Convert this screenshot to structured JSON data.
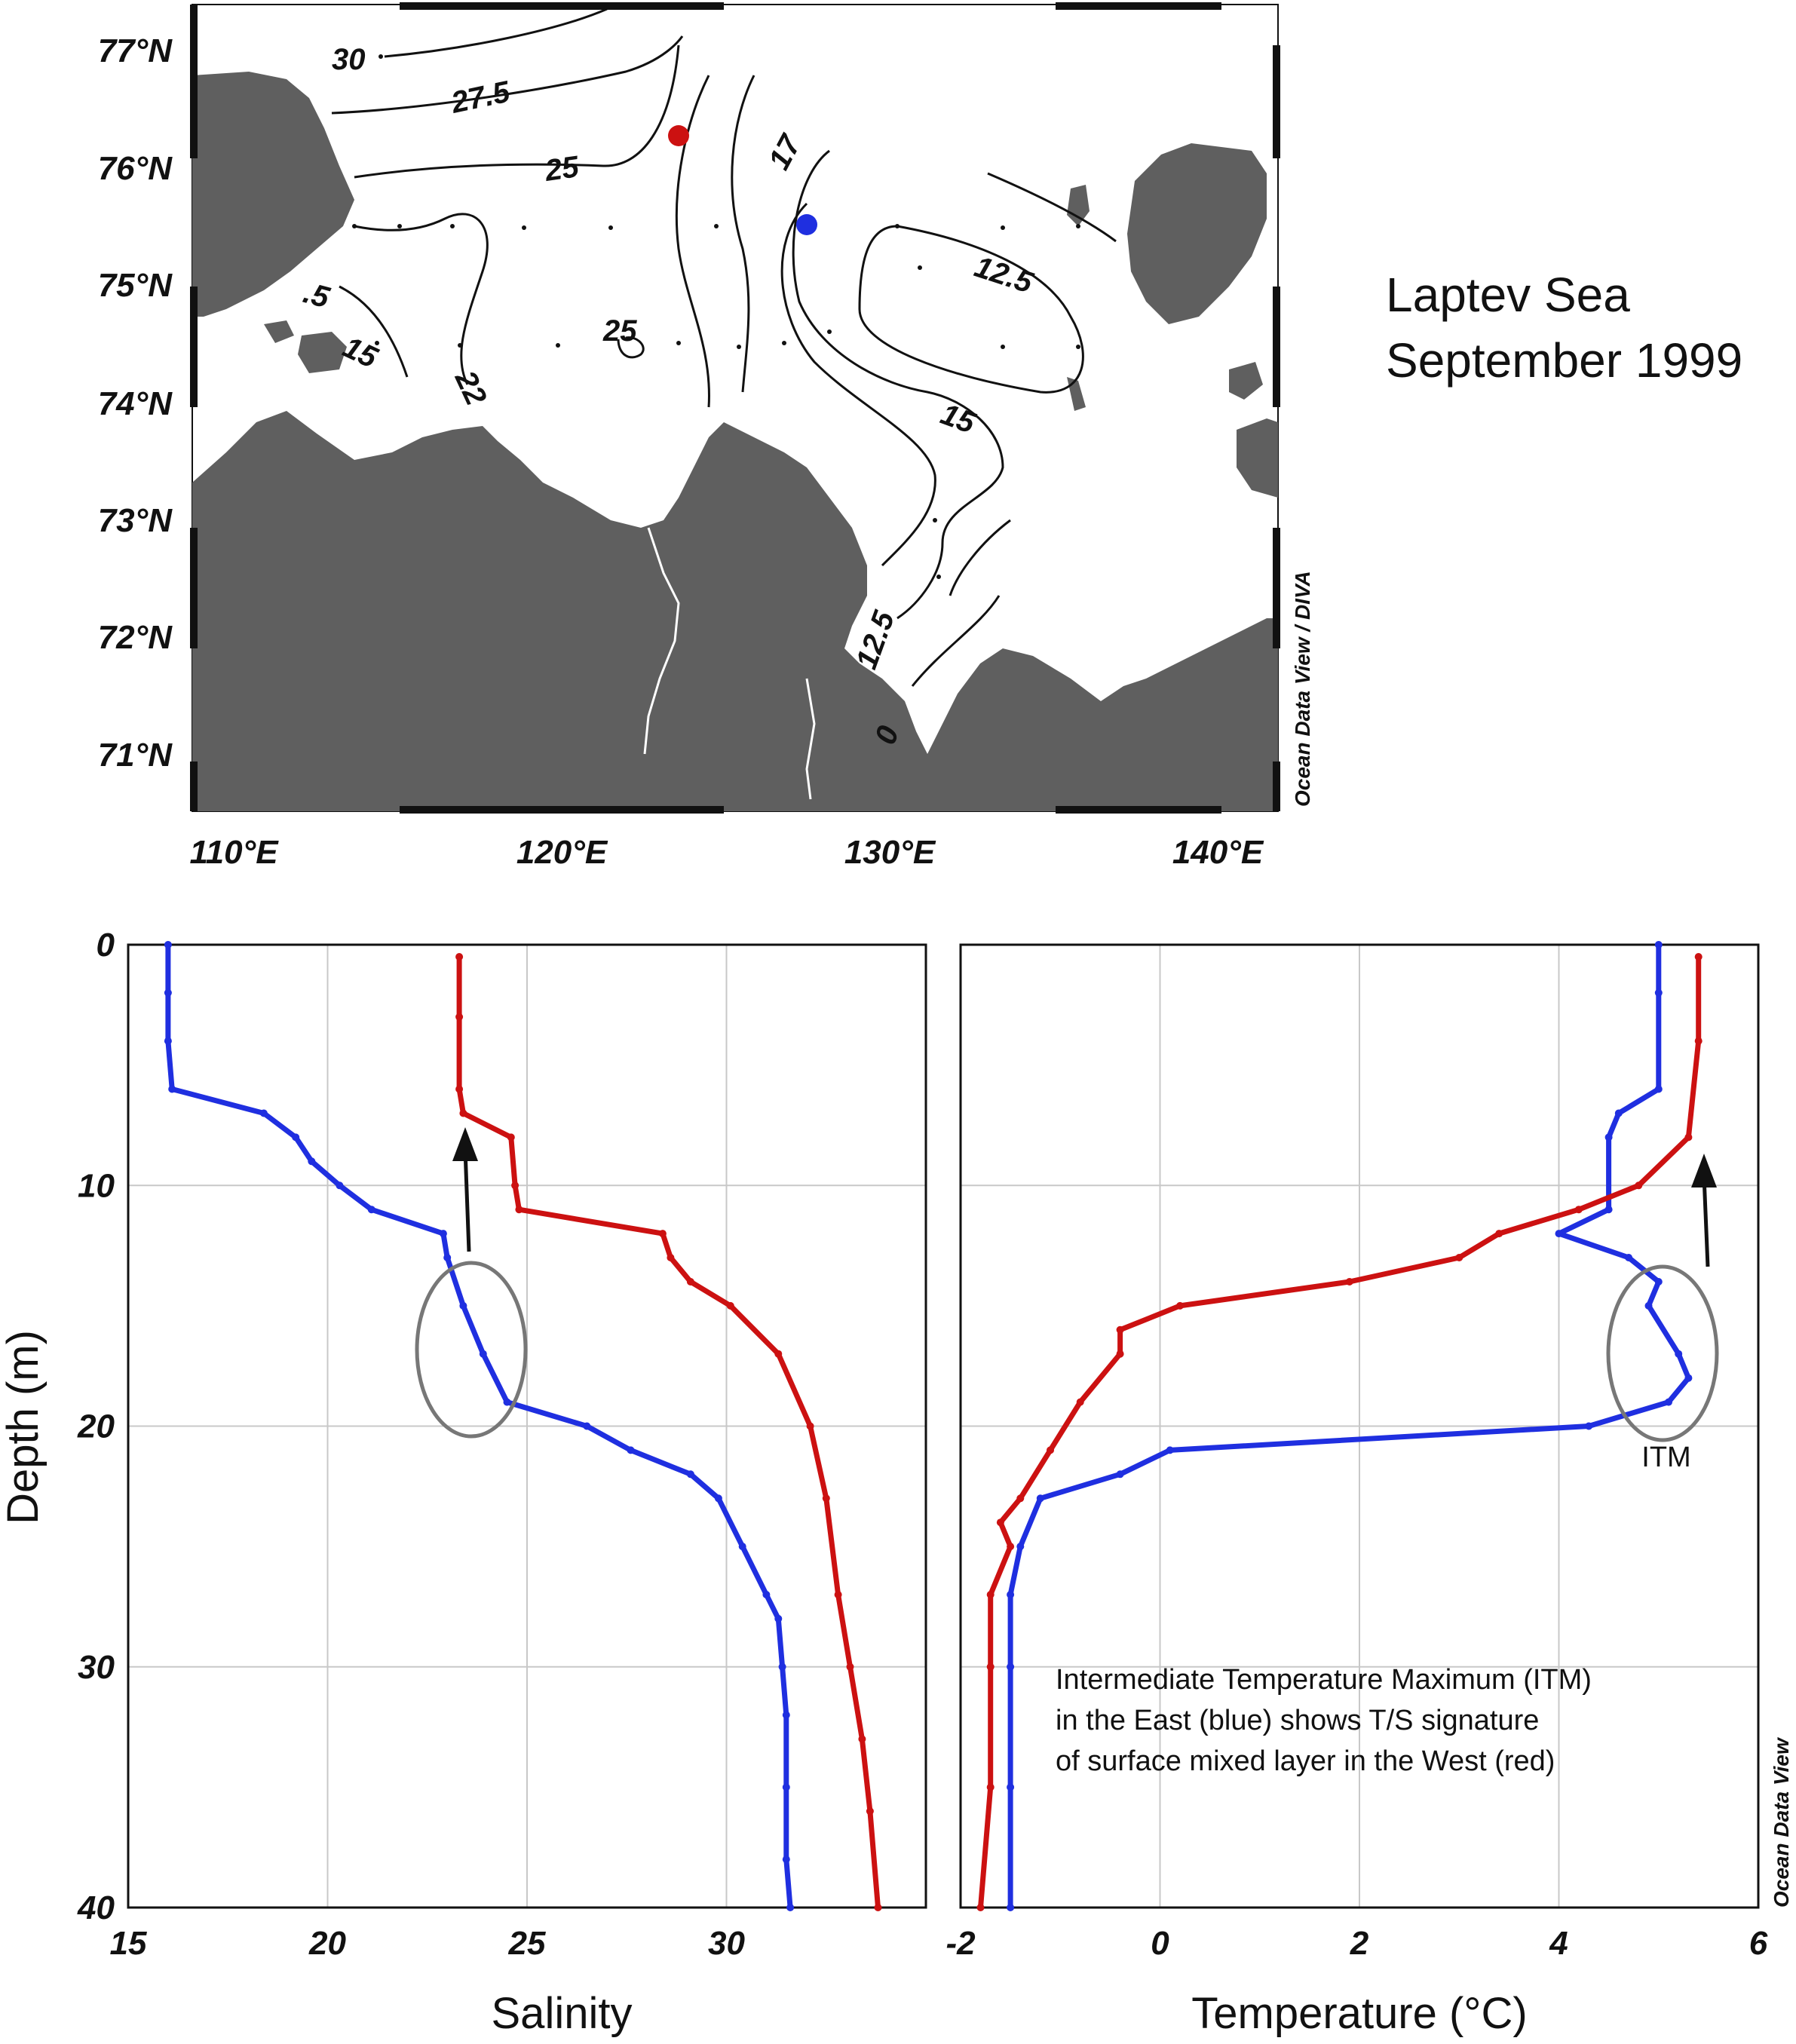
{
  "map": {
    "title_line1": "Laptev Sea",
    "title_line2": "September 1999",
    "lat_labels": [
      "77°N",
      "76°N",
      "75°N",
      "74°N",
      "73°N",
      "72°N",
      "71°N"
    ],
    "lon_labels": [
      "110°E",
      "120°E",
      "130°E",
      "140°E"
    ],
    "credit": "Ocean Data View / DIVA",
    "contour_labels": [
      "30",
      "27.5",
      "25",
      "17",
      "12.5",
      "15",
      "22",
      "25",
      "15",
      "12.5",
      "0",
      ".5",
      "15"
    ],
    "stations": [
      {
        "name": "west",
        "color": "#cc1111",
        "lon": 123.5,
        "lat": 76.3
      },
      {
        "name": "east",
        "color": "#1f2fe0",
        "lon": 127.4,
        "lat": 75.5
      }
    ],
    "land_color": "#5f5f5f"
  },
  "chart_data": [
    {
      "type": "line",
      "xlabel": "Salinity",
      "ylabel": "Depth (m)",
      "xlim": [
        15,
        35
      ],
      "ylim": [
        40,
        0
      ],
      "xticks": [
        "15",
        "20",
        "25",
        "30"
      ],
      "yticks": [
        "0",
        "10",
        "20",
        "30",
        "40"
      ],
      "grid": true,
      "series": [
        {
          "color": "#1f2fe0",
          "x": [
            16.0,
            16.0,
            16.0,
            16.1,
            18.4,
            19.2,
            19.6,
            20.3,
            21.1,
            22.9,
            23.0,
            23.4,
            23.9,
            24.5,
            26.5,
            27.6,
            29.1,
            29.8,
            30.4,
            31.0,
            31.3,
            31.4,
            31.5,
            31.5,
            31.5,
            31.6
          ],
          "y": [
            0,
            2,
            4,
            6,
            7,
            8,
            9,
            10,
            11,
            12,
            13,
            15,
            17,
            19,
            20,
            21,
            22,
            23,
            25,
            27,
            28,
            30,
            32,
            35,
            38,
            40
          ]
        },
        {
          "color": "#cc1111",
          "x": [
            23.3,
            23.3,
            23.3,
            23.4,
            24.6,
            24.7,
            24.8,
            28.4,
            28.6,
            29.1,
            30.1,
            31.3,
            32.1,
            32.5,
            32.8,
            33.1,
            33.4,
            33.6,
            33.8
          ],
          "y": [
            0.5,
            3,
            6,
            7,
            8,
            10,
            11,
            12,
            13,
            14,
            15,
            17,
            20,
            23,
            27,
            30,
            33,
            36,
            40
          ]
        }
      ]
    },
    {
      "type": "line",
      "xlabel": "Temperature (°C)",
      "xlim": [
        -2,
        6
      ],
      "ylim": [
        40,
        0
      ],
      "xticks": [
        "-2",
        "0",
        "2",
        "4",
        "6"
      ],
      "yticks": [
        "0",
        "10",
        "20",
        "30",
        "40"
      ],
      "grid": true,
      "series": [
        {
          "color": "#1f2fe0",
          "x": [
            5.0,
            5.0,
            5.0,
            4.6,
            4.5,
            4.5,
            4.0,
            4.7,
            5.0,
            4.9,
            5.2,
            5.3,
            5.1,
            4.3,
            0.1,
            -0.4,
            -1.2,
            -1.4,
            -1.5,
            -1.5,
            -1.5,
            -1.5
          ],
          "y": [
            0,
            2,
            6,
            7,
            8,
            11,
            12,
            13,
            14,
            15,
            17,
            18,
            19,
            20,
            21,
            22,
            23,
            25,
            27,
            30,
            35,
            40
          ]
        },
        {
          "color": "#cc1111",
          "x": [
            5.4,
            5.4,
            5.3,
            4.8,
            4.2,
            3.4,
            3.0,
            1.9,
            0.2,
            -0.4,
            -0.4,
            -0.8,
            -1.1,
            -1.4,
            -1.6,
            -1.5,
            -1.7,
            -1.7,
            -1.7,
            -1.8
          ],
          "y": [
            0.5,
            4,
            8,
            10,
            11,
            12,
            13,
            14,
            15,
            16,
            17,
            19,
            21,
            23,
            24,
            25,
            27,
            30,
            35,
            40
          ]
        }
      ]
    }
  ],
  "annotations": {
    "itm_label": "ITM",
    "note_line1": "Intermediate Temperature Maximum (ITM)",
    "note_line2": "in the East (blue) shows T/S signature",
    "note_line3": "of surface mixed layer in the West (red)",
    "credit": "Ocean Data View"
  }
}
